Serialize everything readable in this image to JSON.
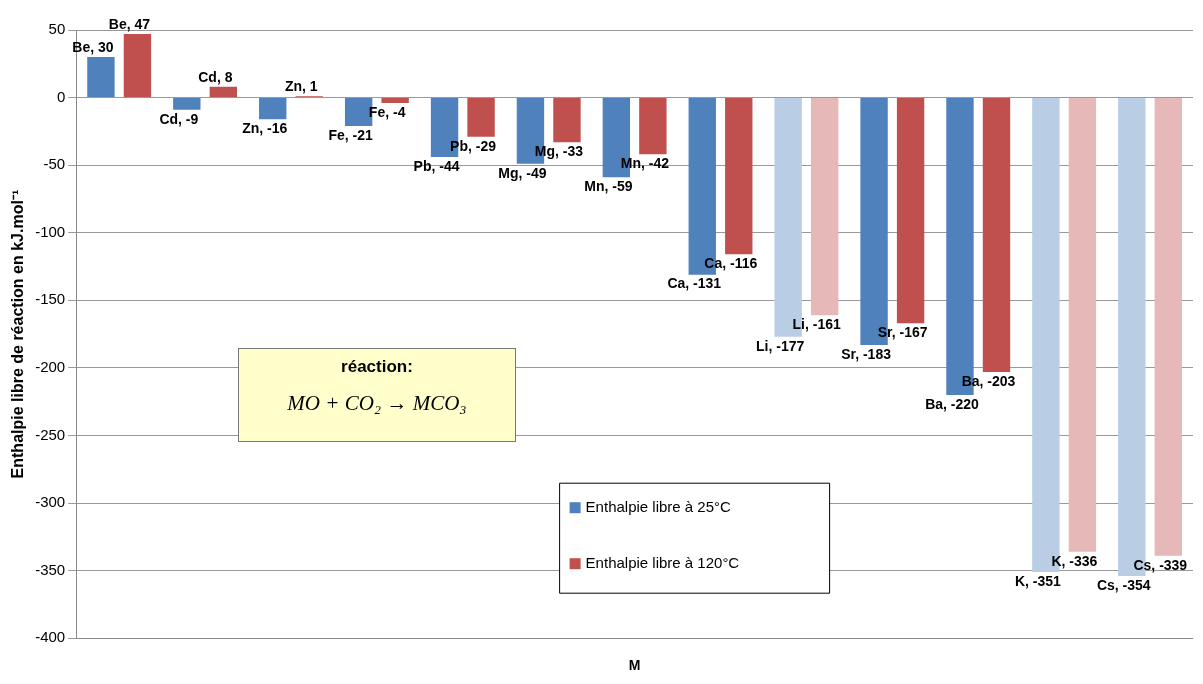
{
  "chart_data": {
    "type": "bar",
    "ylabel": "Enthalpie libre de réaction en kJ.mol⁻¹",
    "xlabel": "M",
    "categories": [
      null,
      null,
      null,
      null,
      null,
      null,
      null,
      null,
      null,
      null,
      null,
      null,
      null
    ],
    "series": [
      {
        "name": "Enthalpie libre à 25°C",
        "color": "#4f81bd",
        "colors": [
          "#4f81bd",
          "#4f81bd",
          "#4f81bd",
          "#4f81bd",
          "#4f81bd",
          "#4f81bd",
          "#4f81bd",
          "#4f81bd",
          "#b9cde5",
          "#4f81bd",
          "#4f81bd",
          "#b9cde5",
          "#b9cde5"
        ],
        "values": [
          30,
          -9,
          -16,
          -21,
          -44,
          -49,
          -59,
          -131,
          -177,
          -183,
          -220,
          -351,
          -354
        ],
        "value_labels": [
          "Be, 30",
          "Cd, -9",
          "Zn, -16",
          "Fe, -21",
          "Pb, -44",
          "Mg, -49",
          "Mn, -59",
          "Ca, -131",
          "Li, -177",
          "Sr, -183",
          "Ba, -220",
          "K, -351",
          "Cs, -354"
        ]
      },
      {
        "name": "Enthalpie libre à 120°C",
        "color": "#c0504d",
        "colors": [
          "#c0504d",
          "#c0504d",
          "#c0504d",
          "#c0504d",
          "#c0504d",
          "#c0504d",
          "#c0504d",
          "#c0504d",
          "#e6b9b8",
          "#c0504d",
          "#c0504d",
          "#e6b9b8",
          "#e6b9b8"
        ],
        "values": [
          47,
          8,
          1,
          -4,
          -29,
          -33,
          -42,
          -116,
          -161,
          -167,
          -203,
          -336,
          -339
        ],
        "value_labels": [
          "Be, 47",
          "Cd, 8",
          "Zn, 1",
          "Fe, -4",
          "Pb, -29",
          "Mg, -33",
          "Mn, -42",
          "Ca, -116",
          "Li, -161",
          "Sr, -167",
          "Ba, -203",
          "K, -336",
          "Cs, -339"
        ]
      }
    ],
    "ylim": [
      -400,
      50
    ],
    "yticks": [
      -400,
      -350,
      -300,
      -250,
      -200,
      -150,
      -100,
      -50,
      0,
      50
    ],
    "grid": "y",
    "legend": "bottom",
    "annotations": [
      "réaction:",
      "MO + CO₂ → MCO₃"
    ]
  }
}
